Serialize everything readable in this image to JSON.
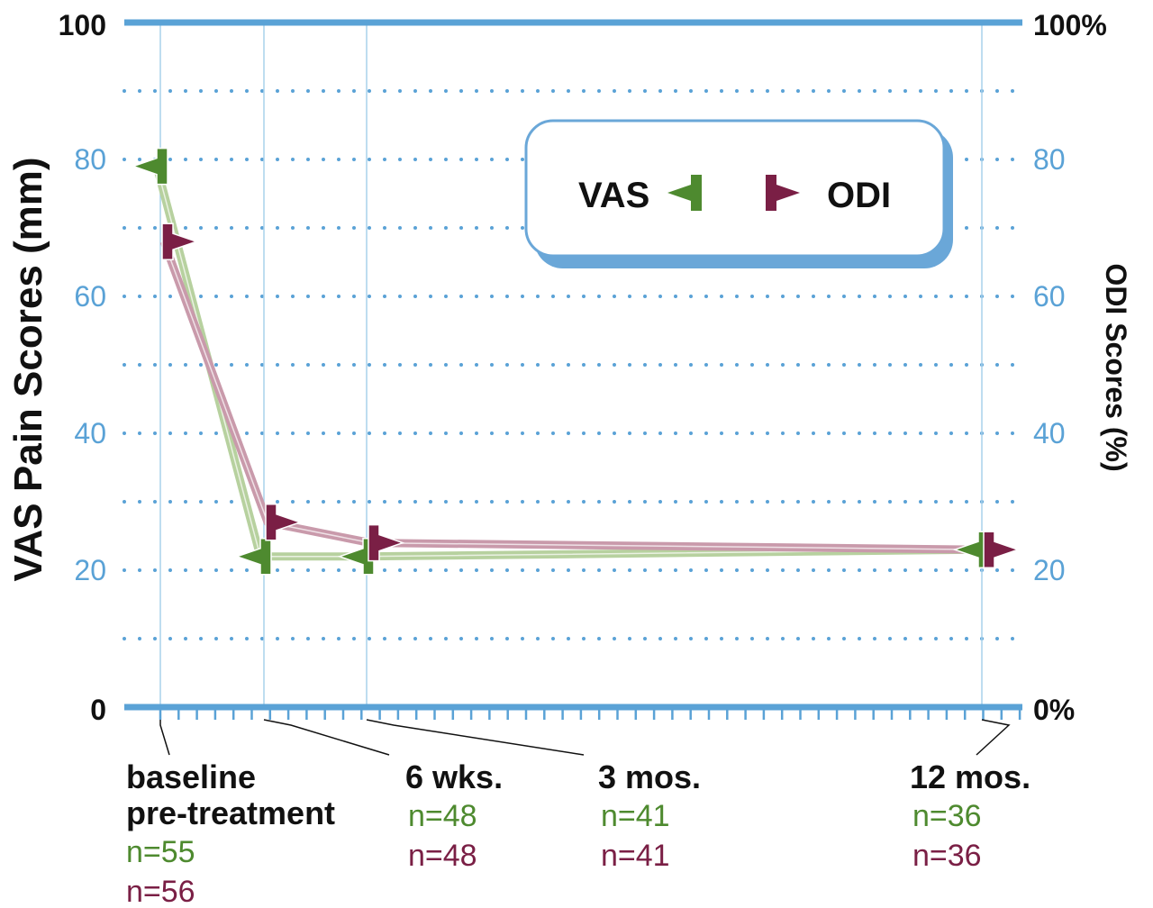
{
  "chart_data": {
    "type": "line",
    "x": [
      "baseline pre-treatment",
      "6 wks.",
      "3 mos.",
      "12 mos."
    ],
    "x_label_lines": [
      [
        "baseline",
        "pre-treatment"
      ],
      [
        "6 wks."
      ],
      [
        "3 mos."
      ],
      [
        "12 mos."
      ]
    ],
    "x_position_months": [
      0,
      1.5,
      3,
      12
    ],
    "series": [
      {
        "name": "VAS",
        "axis": "left",
        "values": [
          79,
          22,
          22,
          23
        ],
        "color": "#4e8a2f",
        "line_color": "#b7d19f",
        "n": [
          "n=55",
          "n=48",
          "n=41",
          "n=36"
        ]
      },
      {
        "name": "ODI",
        "axis": "right",
        "values": [
          68,
          27,
          24,
          23
        ],
        "color": "#7a1f45",
        "line_color": "#c99aab",
        "n": [
          "n=56",
          "n=48",
          "n=41",
          "n=36"
        ]
      }
    ],
    "ylabel": "VAS Pain Scores (mm)",
    "y2label": "ODI Scores (%)",
    "ylim": [
      0,
      100
    ],
    "y2lim": [
      0,
      100
    ],
    "yticks_left": [
      "0",
      "20",
      "40",
      "60",
      "80",
      "100"
    ],
    "yticks_right": [
      "0%",
      "20",
      "40",
      "60",
      "80",
      "100%"
    ],
    "legend": {
      "entries": [
        "VAS",
        "ODI"
      ],
      "position": "top-right"
    },
    "grid": true,
    "axis_color": "#5aa2d6",
    "tick_color": "#5aa2d6"
  }
}
